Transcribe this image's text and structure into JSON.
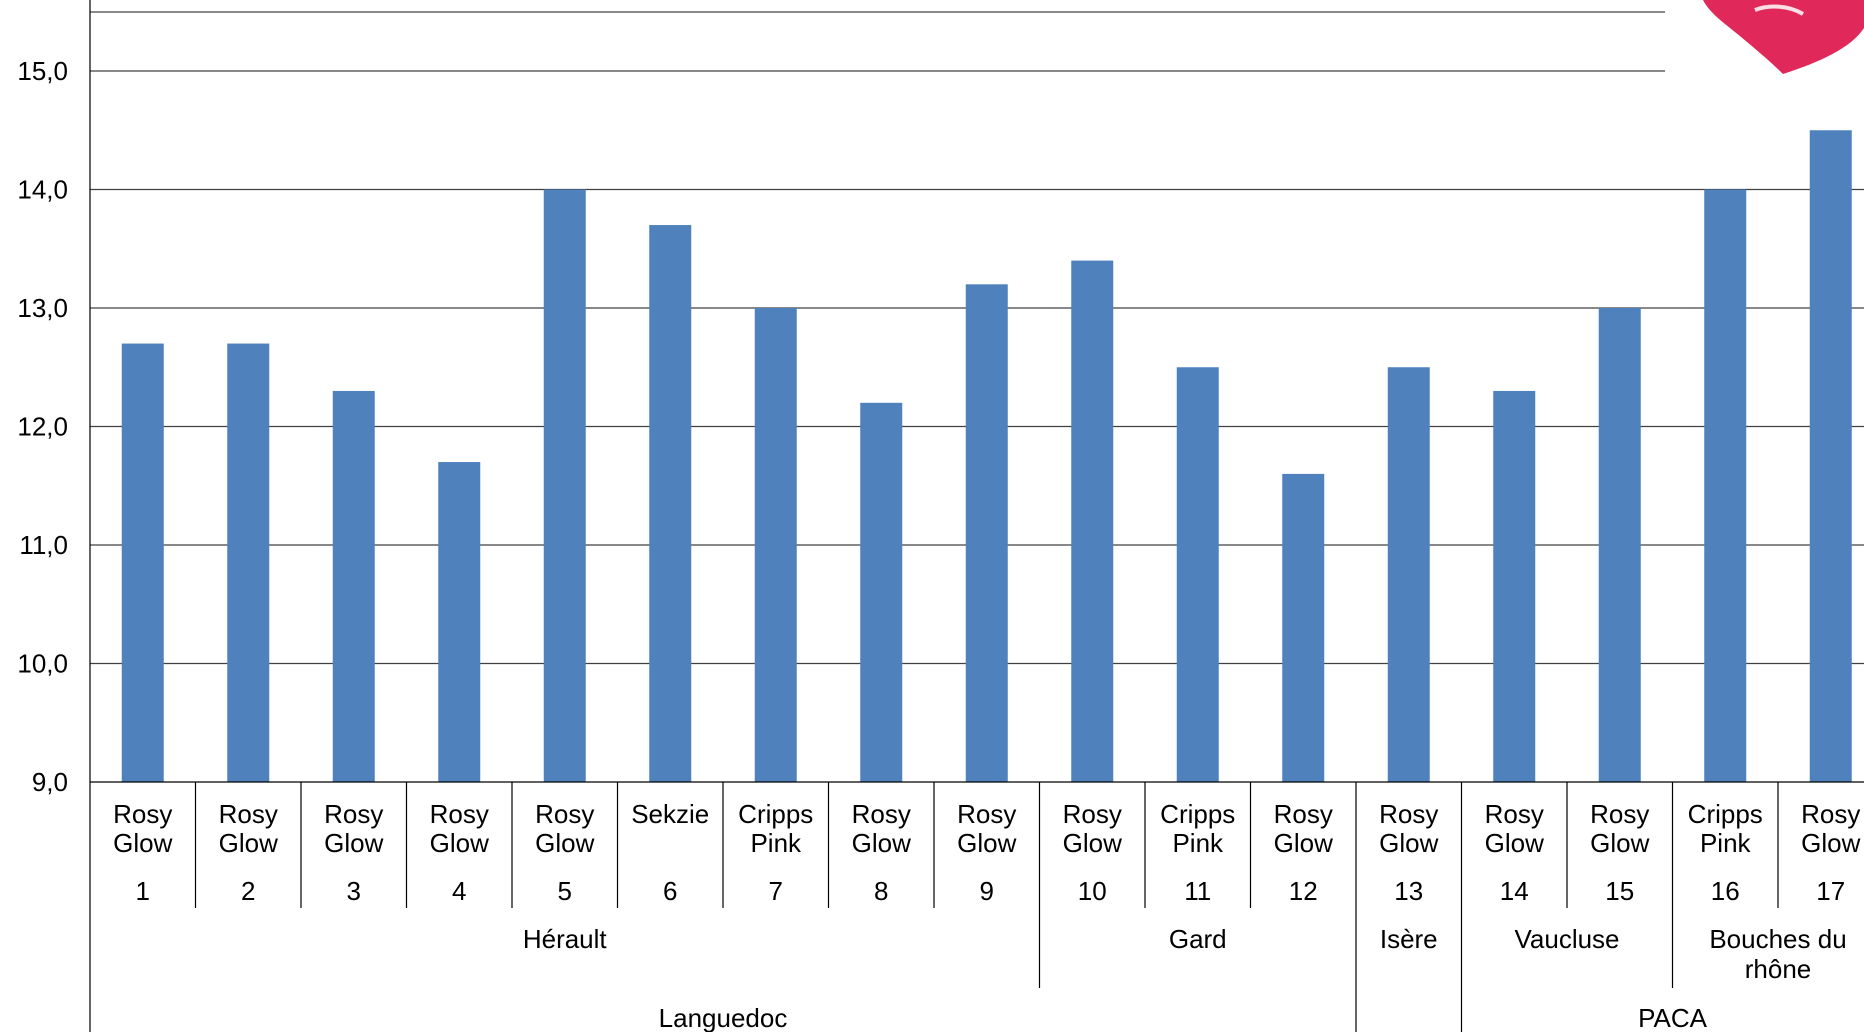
{
  "colors": {
    "bar": "#4f81bd",
    "grid": "#404040",
    "axis": "#000000",
    "logo": "#e0285a"
  },
  "logo": {
    "name": "heart-logo"
  },
  "chart_data": {
    "type": "bar",
    "title": "",
    "ylabel": "",
    "xlabel": "",
    "ylim": [
      9.0,
      15.0
    ],
    "yticks": [
      "9,0",
      "10,0",
      "11,0",
      "12,0",
      "13,0",
      "14,0",
      "15,0"
    ],
    "grid": true,
    "legend": "none",
    "categories": [
      {
        "id": "1",
        "variety": [
          "Rosy",
          "Glow"
        ]
      },
      {
        "id": "2",
        "variety": [
          "Rosy",
          "Glow"
        ]
      },
      {
        "id": "3",
        "variety": [
          "Rosy",
          "Glow"
        ]
      },
      {
        "id": "4",
        "variety": [
          "Rosy",
          "Glow"
        ]
      },
      {
        "id": "5",
        "variety": [
          "Rosy",
          "Glow"
        ]
      },
      {
        "id": "6",
        "variety": [
          "Sekzie"
        ]
      },
      {
        "id": "7",
        "variety": [
          "Cripps",
          "Pink"
        ]
      },
      {
        "id": "8",
        "variety": [
          "Rosy",
          "Glow"
        ]
      },
      {
        "id": "9",
        "variety": [
          "Rosy",
          "Glow"
        ]
      },
      {
        "id": "10",
        "variety": [
          "Rosy",
          "Glow"
        ]
      },
      {
        "id": "11",
        "variety": [
          "Cripps",
          "Pink"
        ]
      },
      {
        "id": "12",
        "variety": [
          "Rosy",
          "Glow"
        ]
      },
      {
        "id": "13",
        "variety": [
          "Rosy",
          "Glow"
        ]
      },
      {
        "id": "14",
        "variety": [
          "Rosy",
          "Glow"
        ]
      },
      {
        "id": "15",
        "variety": [
          "Rosy",
          "Glow"
        ]
      },
      {
        "id": "16",
        "variety": [
          "Cripps",
          "Pink"
        ]
      },
      {
        "id": "17",
        "variety": [
          "Rosy",
          "Glow"
        ]
      }
    ],
    "values": [
      12.7,
      12.7,
      12.3,
      11.7,
      14.0,
      13.7,
      13.0,
      12.2,
      13.2,
      13.4,
      12.5,
      11.6,
      12.5,
      12.3,
      13.0,
      14.0,
      14.5
    ],
    "departments": [
      {
        "label": [
          "Hérault"
        ],
        "span": 9
      },
      {
        "label": [
          "Gard"
        ],
        "span": 3
      },
      {
        "label": [
          "Isère"
        ],
        "span": 1
      },
      {
        "label": [
          "Vaucluse"
        ],
        "span": 2
      },
      {
        "label": [
          "Bouches du",
          "rhône"
        ],
        "span": 2
      }
    ],
    "regions": [
      {
        "label": "Languedoc",
        "span": 12
      },
      {
        "label": "",
        "span": 1
      },
      {
        "label": "PACA",
        "span": 4
      }
    ]
  }
}
